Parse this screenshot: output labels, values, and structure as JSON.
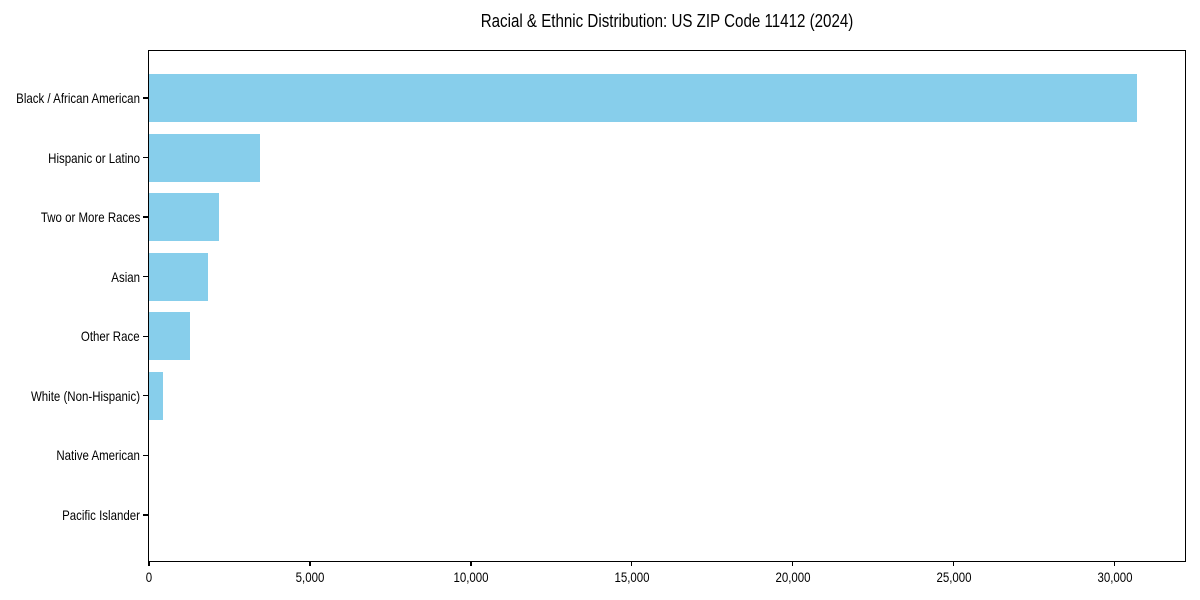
{
  "title": "Racial & Ethnic Distribution: US ZIP Code 11412 (2024)",
  "colors": {
    "bar": "#87CEEB",
    "axis": "#000000",
    "text": "#000000",
    "background": "#FFFFFF"
  },
  "chart_data": {
    "type": "bar",
    "orientation": "horizontal",
    "title": "Racial & Ethnic Distribution: US ZIP Code 11412 (2024)",
    "xlabel": "",
    "ylabel": "",
    "categories": [
      "Black / African American",
      "Hispanic or Latino",
      "Two or More Races",
      "Asian",
      "Other Race",
      "White (Non-Hispanic)",
      "Native American",
      "Pacific Islander"
    ],
    "values": [
      30700,
      3450,
      2170,
      1830,
      1270,
      430,
      0,
      0
    ],
    "xlim": [
      0,
      32250
    ],
    "x_ticks": [
      0,
      5000,
      10000,
      15000,
      20000,
      25000,
      30000
    ],
    "x_tick_labels": [
      "0",
      "5,000",
      "10,000",
      "15,000",
      "20,000",
      "25,000",
      "30,000"
    ],
    "grid": false,
    "legend": null,
    "bar_color": "#87CEEB"
  }
}
